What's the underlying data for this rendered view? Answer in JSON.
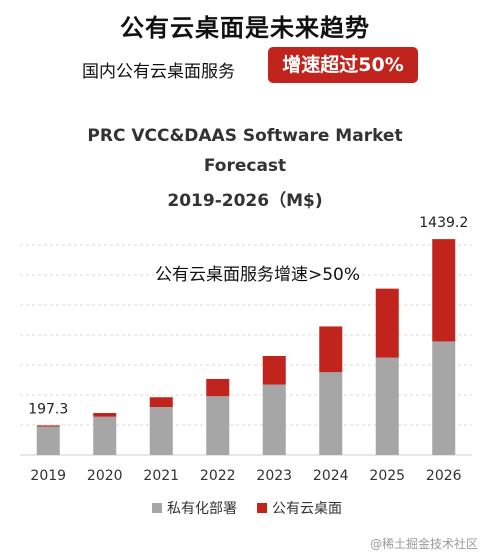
{
  "header": {
    "headline": "公有云桌面是未来趋势",
    "subline": "国内公有云桌面服务",
    "badge": "增速超过50%"
  },
  "chart_data": {
    "type": "bar",
    "stacked": true,
    "title_lines": [
      "PRC VCC&DAAS Software Market",
      "Forecast",
      "2019-2026（M$)"
    ],
    "categories": [
      "2019",
      "2020",
      "2021",
      "2022",
      "2023",
      "2024",
      "2025",
      "2026"
    ],
    "series": [
      {
        "name": "私有化部署",
        "color": "#a6a6a6",
        "values": [
          190,
          255,
          320,
          392,
          470,
          552,
          649,
          757
        ]
      },
      {
        "name": "公有云桌面",
        "color": "#c0241c",
        "values": [
          7.3,
          25,
          65,
          115,
          190,
          305,
          460,
          682.2
        ]
      }
    ],
    "totals_labels": {
      "2019": "197.3",
      "2026": "1439.2"
    },
    "annotation": "公有云桌面服务增速>50%",
    "ylim": [
      0,
      1500
    ],
    "grid": true,
    "legend_position": "bottom"
  },
  "watermark": "@稀土掘金技术社区"
}
